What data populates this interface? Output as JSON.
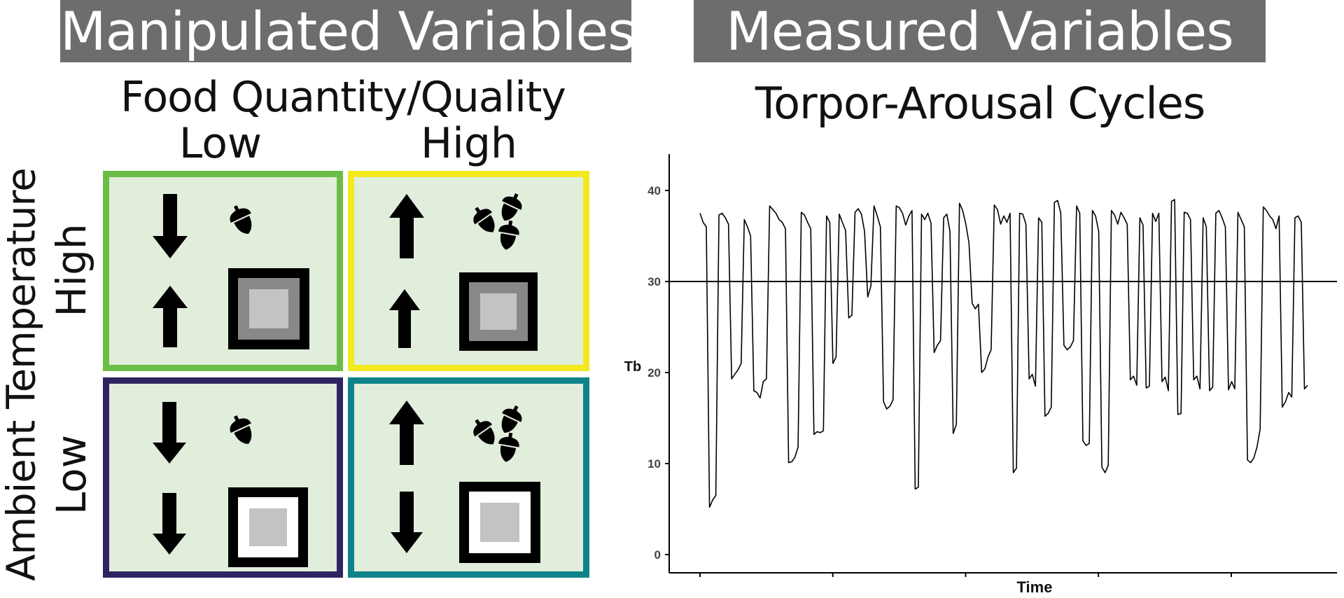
{
  "manipulated": {
    "banner": "Manipulated Variables",
    "food_title": "Food Quantity/Quality",
    "food_low": "Low",
    "food_high": "High",
    "temp_title": "Ambient Temperature",
    "temp_high": "High",
    "temp_low": "Low",
    "cells": [
      {
        "id": "high-temp-low-food",
        "border_color": "#6abe45",
        "food_arrow": "down",
        "temp_arrow": "up",
        "acorns": 1,
        "box_middle": "gray"
      },
      {
        "id": "high-temp-high-food",
        "border_color": "#f3e91f",
        "food_arrow": "up",
        "temp_arrow": "up",
        "acorns": 3,
        "box_middle": "gray"
      },
      {
        "id": "low-temp-low-food",
        "border_color": "#2e2462",
        "food_arrow": "down",
        "temp_arrow": "down",
        "acorns": 1,
        "box_middle": "white"
      },
      {
        "id": "low-temp-high-food",
        "border_color": "#0e8389",
        "food_arrow": "up",
        "temp_arrow": "down",
        "acorns": 3,
        "box_middle": "white"
      }
    ]
  },
  "measured": {
    "banner": "Measured Variables",
    "chart_title": "Torpor-Arousal Cycles"
  },
  "chart_data": {
    "type": "line",
    "title": "Torpor-Arousal Cycles",
    "xlabel": "Time",
    "ylabel": "Tb",
    "ylim": [
      -2,
      44
    ],
    "yticks": [
      0,
      10,
      20,
      30,
      40
    ],
    "x_tick_count": 6,
    "reference_line_y": 30,
    "grid": false,
    "series": [
      {
        "values": [
          37.5,
          36.5,
          36,
          5.2,
          6,
          6.5,
          37.3,
          37.5,
          37,
          36.3,
          19.3,
          19.8,
          20.3,
          21,
          36.8,
          36,
          35,
          18,
          17.8,
          17.2,
          19,
          19.3,
          38.3,
          37.9,
          37.5,
          36.8,
          36.5,
          35.8,
          10.1,
          10.2,
          10.7,
          11.8,
          37.6,
          37.3,
          36.5,
          35.8,
          13.2,
          13.5,
          13.4,
          13.6,
          37.2,
          36.5,
          21,
          21.7,
          37.4,
          36.5,
          35.6,
          26,
          26.3,
          37.6,
          38,
          37.4,
          35.5,
          28.3,
          29.5,
          38.3,
          37.2,
          36,
          16.8,
          16,
          16.3,
          17,
          38.3,
          38.1,
          37.5,
          36.2,
          37.2,
          37.8,
          7.2,
          7.4,
          37.4,
          36.8,
          37.5,
          36.4,
          22.2,
          23,
          23.5,
          37,
          37.4,
          35.5,
          13.3,
          14.3,
          38.6,
          37.8,
          36.3,
          34.2,
          27.6,
          27,
          27.5,
          20,
          20.4,
          21.7,
          22.5,
          38.4,
          37.9,
          36.3,
          37.2,
          36.5,
          37.5,
          9,
          9.5,
          37.5,
          37.4,
          36.3,
          19.3,
          19.8,
          18.5,
          37,
          36.5,
          15.2,
          15.5,
          16.2,
          38.7,
          38.9,
          37.5,
          23,
          22.5,
          22.8,
          23.5,
          38.3,
          37.5,
          12.5,
          12,
          12.2,
          37.8,
          37.2,
          35.5,
          9.6,
          9,
          9.8,
          37.8,
          37.3,
          36.3,
          37.6,
          37,
          36.3,
          19.2,
          19.6,
          18.6,
          37,
          36.2,
          18.3,
          18.5,
          37.5,
          36.6,
          37.5,
          19,
          19.5,
          18,
          38.8,
          39,
          15.4,
          15.5,
          37.6,
          37.5,
          36.8,
          19.2,
          19.6,
          18.2,
          37,
          36,
          18,
          18.4,
          37.5,
          37.8,
          37,
          36,
          18.1,
          19,
          18.2,
          37.6,
          36.8,
          36,
          10.4,
          10.1,
          10.6,
          11.8,
          13.8,
          38.2,
          37.8,
          37.2,
          36.8,
          35.8,
          37.2,
          16.2,
          16.8,
          17.8,
          17.3,
          37,
          37.2,
          36.5,
          18.2,
          18.6
        ]
      }
    ]
  }
}
